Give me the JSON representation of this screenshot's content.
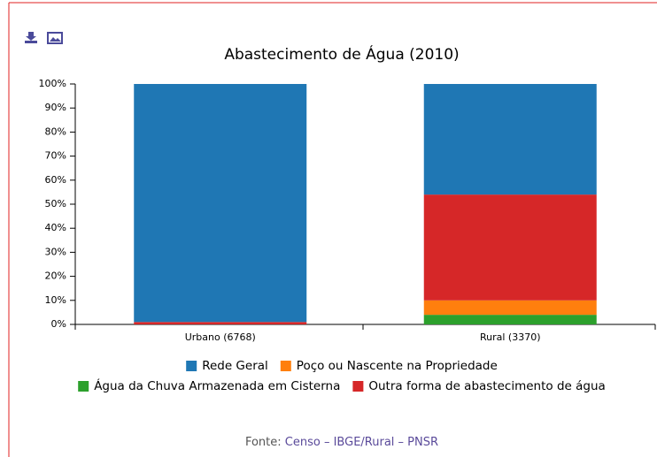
{
  "chart_data": {
    "type": "stacked_bar",
    "title": "Abastecimento de Água (2010)",
    "categories": [
      "Urbano (6768)",
      "Rural (3370)"
    ],
    "series": [
      {
        "name": "Rede Geral",
        "color": "#1f77b4",
        "values": [
          99,
          46
        ]
      },
      {
        "name": "Poço ou Nascente na Propriedade",
        "color": "#ff7f0e",
        "values": [
          0,
          6
        ]
      },
      {
        "name": "Água da Chuva Armazenada em Cisterna",
        "color": "#2ca02c",
        "values": [
          0,
          4
        ]
      },
      {
        "name": "Outra forma de abastecimento de água",
        "color": "#d62728",
        "values": [
          1,
          44
        ]
      }
    ],
    "ylim": [
      0,
      100
    ],
    "yticks": [
      {
        "value": 0,
        "label": "0%"
      },
      {
        "value": 10,
        "label": "10%"
      },
      {
        "value": 20,
        "label": "20%"
      },
      {
        "value": 30,
        "label": "30%"
      },
      {
        "value": 40,
        "label": "40%"
      },
      {
        "value": 50,
        "label": "50%"
      },
      {
        "value": 60,
        "label": "60%"
      },
      {
        "value": 70,
        "label": "70%"
      },
      {
        "value": 80,
        "label": "80%"
      },
      {
        "value": 90,
        "label": "90%"
      },
      {
        "value": 100,
        "label": "100%"
      }
    ],
    "source": {
      "label": "Fonte:",
      "link": "Censo – IBGE/Rural – PNSR"
    }
  }
}
